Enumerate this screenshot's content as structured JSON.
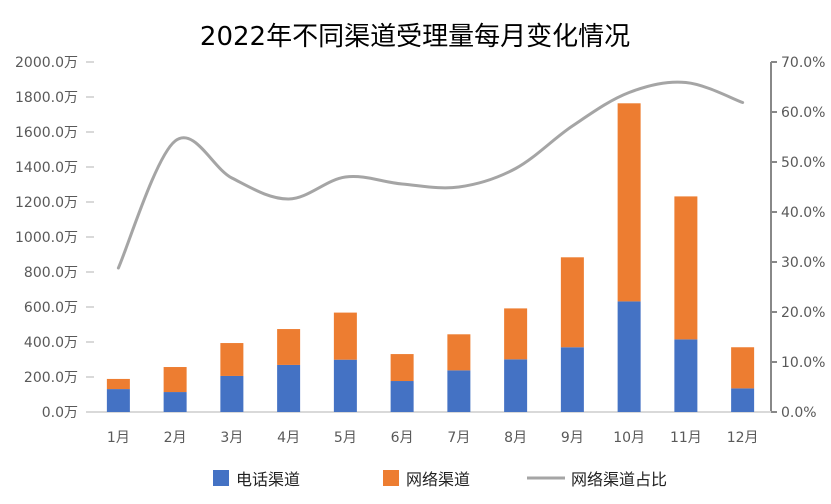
{
  "chart_data": {
    "type": "bar",
    "stacked": true,
    "title": "2022年不同渠道受理量每月变化情况",
    "categories": [
      "1月",
      "2月",
      "3月",
      "4月",
      "5月",
      "6月",
      "7月",
      "8月",
      "9月",
      "10月",
      "11月",
      "12月"
    ],
    "series": [
      {
        "name": "电话渠道",
        "type": "bar",
        "axis": "left",
        "color": "#4472C4",
        "values": [
          131,
          114,
          206,
          269,
          299,
          177,
          238,
          301,
          370,
          632,
          415,
          135
        ]
      },
      {
        "name": "网络渠道",
        "type": "bar",
        "axis": "left",
        "color": "#ED7D31",
        "values": [
          58,
          143,
          188,
          205,
          269,
          154,
          206,
          291,
          514,
          1132,
          817,
          235
        ]
      },
      {
        "name": "网络渠道占比",
        "type": "line",
        "smooth": true,
        "axis": "right",
        "color": "#A5A5A5",
        "values": [
          28.8,
          54.2,
          46.8,
          42.6,
          47.0,
          45.6,
          45.0,
          48.7,
          57.2,
          63.9,
          65.9,
          61.9
        ]
      }
    ],
    "y_left": {
      "range": [
        0,
        2000
      ],
      "ticks": [
        "0.0万",
        "200.0万",
        "400.0万",
        "600.0万",
        "800.0万",
        "1000.0万",
        "1200.0万",
        "1400.0万",
        "1600.0万",
        "1800.0万",
        "2000.0万"
      ]
    },
    "y_right": {
      "range": [
        0,
        70
      ],
      "ticks": [
        "0.0%",
        "10.0%",
        "20.0%",
        "30.0%",
        "40.0%",
        "50.0%",
        "60.0%",
        "70.0%"
      ]
    },
    "grid": false,
    "legend": "bottom"
  }
}
